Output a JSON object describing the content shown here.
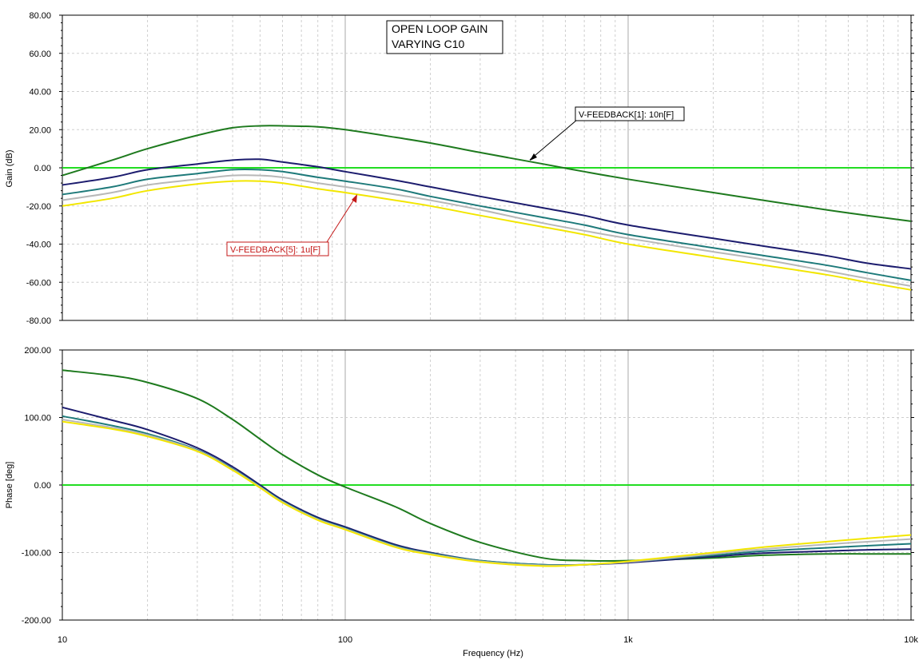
{
  "chart_data": [
    {
      "type": "line",
      "panel": "gain",
      "title_lines": [
        "OPEN LOOP GAIN",
        "VARYING C10"
      ],
      "xlabel": "",
      "ylabel": "Gain (dB)",
      "xscale": "log",
      "xlim": [
        10,
        10000
      ],
      "ylim": [
        -80,
        80
      ],
      "yticks": [
        80,
        60,
        40,
        20,
        0,
        -20,
        -40,
        -60,
        -80
      ],
      "ytick_labels": [
        "80.00",
        "60.00",
        "40.00",
        "20.00",
        "0.00",
        "-20.00",
        "-40.00",
        "-60.00",
        "-80.00"
      ],
      "grid": true,
      "reference_line": {
        "y": 0,
        "color": "#22dd22"
      },
      "series": [
        {
          "color": "#1e7a1e",
          "x": [
            10,
            15,
            20,
            30,
            40,
            50,
            60,
            80,
            100,
            150,
            200,
            300,
            500,
            700,
            1000,
            2000,
            3000,
            5000,
            7000,
            10000
          ],
          "values": [
            -4,
            4,
            10,
            17,
            21,
            22,
            22,
            21.5,
            20,
            16,
            13,
            8,
            2,
            -2,
            -6,
            -13,
            -17,
            -22,
            -25,
            -28
          ]
        },
        {
          "color": "#1c1c6e",
          "x": [
            10,
            15,
            20,
            30,
            40,
            50,
            60,
            80,
            100,
            150,
            200,
            300,
            500,
            700,
            1000,
            2000,
            3000,
            5000,
            7000,
            10000
          ],
          "values": [
            -9,
            -5,
            -1,
            2,
            4,
            4.5,
            3,
            0.5,
            -2,
            -6.5,
            -10,
            -15,
            -21,
            -25,
            -30,
            -37,
            -41,
            -46,
            -50,
            -53
          ]
        },
        {
          "color": "#1e7a7a",
          "x": [
            10,
            15,
            20,
            30,
            40,
            50,
            60,
            80,
            100,
            150,
            200,
            300,
            500,
            700,
            1000,
            2000,
            3000,
            5000,
            7000,
            10000
          ],
          "values": [
            -14,
            -10,
            -6,
            -3,
            -1,
            -1,
            -2,
            -5,
            -7,
            -11,
            -15,
            -20,
            -26,
            -30,
            -35,
            -42,
            -46,
            -51,
            -55,
            -59
          ]
        },
        {
          "color": "#b8b8b8",
          "x": [
            10,
            15,
            20,
            30,
            40,
            50,
            60,
            80,
            100,
            150,
            200,
            300,
            500,
            700,
            1000,
            2000,
            3000,
            5000,
            7000,
            10000
          ],
          "values": [
            -17,
            -13,
            -9,
            -6,
            -4,
            -4,
            -5,
            -8,
            -10,
            -14,
            -17,
            -22,
            -29,
            -33,
            -37,
            -44,
            -48,
            -54,
            -58,
            -62
          ]
        },
        {
          "color": "#f2e600",
          "x": [
            10,
            15,
            20,
            30,
            40,
            50,
            60,
            80,
            100,
            150,
            200,
            300,
            500,
            700,
            1000,
            2000,
            3000,
            5000,
            7000,
            10000
          ],
          "values": [
            -20,
            -16,
            -12,
            -8.5,
            -7,
            -7,
            -8,
            -11,
            -13,
            -17,
            -20,
            -25,
            -31,
            -35,
            -40,
            -47,
            -51,
            -56,
            -60,
            -64
          ]
        }
      ],
      "annotations": [
        {
          "text": "V-FEEDBACK[1]: 10n[F]",
          "color": "#000000",
          "target_x": 450,
          "target_y": 4
        },
        {
          "text": "V-FEEDBACK[5]: 1u[F]",
          "color": "#c41818",
          "target_x": 110,
          "target_y": -14
        }
      ]
    },
    {
      "type": "line",
      "panel": "phase",
      "title": "",
      "xlabel": "Frequency (Hz)",
      "ylabel": "Phase [deg]",
      "xscale": "log",
      "xlim": [
        10,
        10000
      ],
      "ylim": [
        -200,
        200
      ],
      "xticks": [
        10,
        100,
        1000,
        10000
      ],
      "xtick_labels": [
        "10",
        "100",
        "1k",
        "10k"
      ],
      "yticks": [
        200,
        100,
        0,
        -100,
        -200
      ],
      "ytick_labels": [
        "200.00",
        "100.00",
        "0.00",
        "-100.00",
        "-200.00"
      ],
      "grid": true,
      "reference_line": {
        "y": 0,
        "color": "#22dd22"
      },
      "series": [
        {
          "color": "#1e7a1e",
          "x": [
            10,
            15,
            20,
            30,
            40,
            50,
            60,
            80,
            100,
            150,
            200,
            300,
            500,
            700,
            1000,
            2000,
            3000,
            5000,
            7000,
            10000
          ],
          "values": [
            170,
            162,
            152,
            128,
            97,
            68,
            45,
            15,
            -3,
            -32,
            -57,
            -85,
            -108,
            -112,
            -112,
            -108,
            -104,
            -102,
            -102,
            -102
          ]
        },
        {
          "color": "#1c1c6e",
          "x": [
            10,
            15,
            20,
            30,
            40,
            50,
            60,
            80,
            100,
            150,
            200,
            300,
            500,
            700,
            1000,
            2000,
            3000,
            5000,
            7000,
            10000
          ],
          "values": [
            115,
            96,
            82,
            55,
            27,
            0,
            -22,
            -48,
            -62,
            -88,
            -100,
            -112,
            -118,
            -118,
            -115,
            -106,
            -101,
            -98,
            -96,
            -95
          ]
        },
        {
          "color": "#1e7a7a",
          "x": [
            10,
            15,
            20,
            30,
            40,
            50,
            60,
            80,
            100,
            150,
            200,
            300,
            500,
            700,
            1000,
            2000,
            3000,
            5000,
            7000,
            10000
          ],
          "values": [
            102,
            88,
            76,
            52,
            24,
            -2,
            -24,
            -50,
            -64,
            -90,
            -101,
            -112,
            -118,
            -118,
            -114,
            -104,
            -98,
            -93,
            -90,
            -87
          ]
        },
        {
          "color": "#b8b8b8",
          "x": [
            10,
            15,
            20,
            30,
            40,
            50,
            60,
            80,
            100,
            150,
            200,
            300,
            500,
            700,
            1000,
            2000,
            3000,
            5000,
            7000,
            10000
          ],
          "values": [
            97,
            85,
            74,
            51,
            23,
            -3,
            -25,
            -51,
            -65,
            -91,
            -102,
            -113,
            -119,
            -118,
            -114,
            -102,
            -95,
            -88,
            -84,
            -80
          ]
        },
        {
          "color": "#f2e600",
          "x": [
            10,
            15,
            20,
            30,
            40,
            50,
            60,
            80,
            100,
            150,
            200,
            300,
            500,
            700,
            1000,
            2000,
            3000,
            5000,
            7000,
            10000
          ],
          "values": [
            94,
            83,
            72,
            50,
            22,
            -4,
            -26,
            -52,
            -66,
            -92,
            -103,
            -114,
            -120,
            -118,
            -113,
            -100,
            -92,
            -84,
            -79,
            -74
          ]
        }
      ]
    }
  ]
}
